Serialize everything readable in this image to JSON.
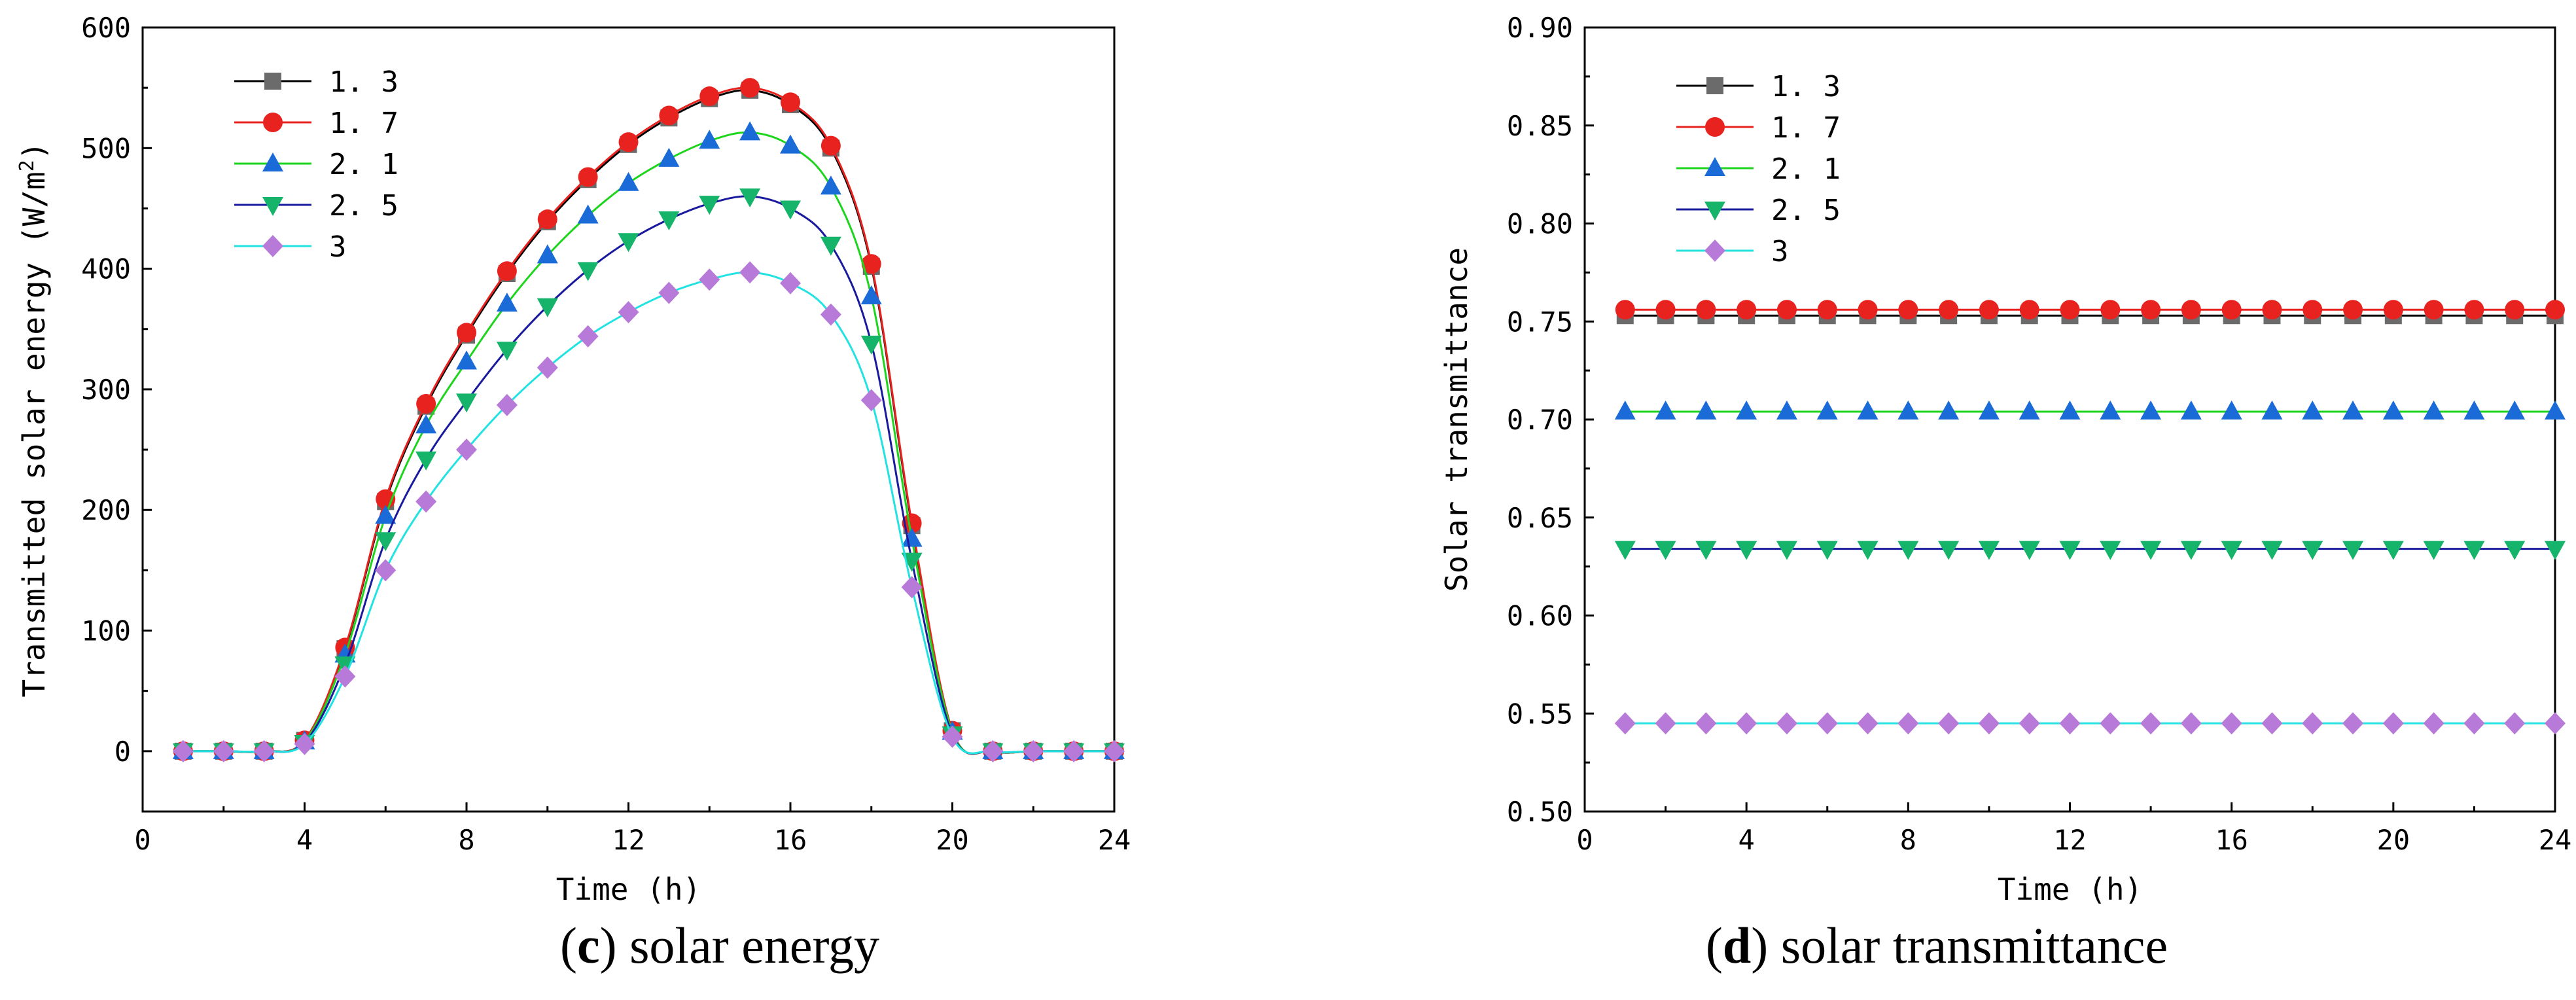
{
  "captions": [
    {
      "letter": "c",
      "open": "(",
      "close": ")",
      "text": " solar energy"
    },
    {
      "letter": "d",
      "open": "(",
      "close": ")",
      "text": " solar transmittance"
    }
  ],
  "chart_data": [
    {
      "type": "line",
      "title": "",
      "xlabel": "Time (h)",
      "ylabel_main": "Transmitted solar energy (W/m",
      "ylabel_sup": "2",
      "ylabel_close": ")",
      "xlim": [
        0,
        24
      ],
      "ylim": [
        -50,
        600
      ],
      "xticks": [
        0,
        4,
        8,
        12,
        16,
        20,
        24
      ],
      "yticks": [
        0,
        100,
        200,
        300,
        400,
        500,
        600
      ],
      "x": [
        1,
        2,
        3,
        4,
        5,
        6,
        7,
        8,
        9,
        10,
        11,
        12,
        13,
        14,
        15,
        16,
        17,
        18,
        19,
        20,
        21,
        22,
        23,
        24
      ],
      "legend_position": "top-left",
      "series": [
        {
          "name": "1.3",
          "marker": "square",
          "line_color": "#000000",
          "marker_color": "#6b6b6b",
          "values": [
            0,
            0,
            0,
            9,
            85,
            207,
            286,
            345,
            396,
            439,
            474,
            503,
            525,
            541,
            548,
            536,
            500,
            402,
            187,
            17,
            0,
            0,
            0,
            0
          ]
        },
        {
          "name": "1.7",
          "marker": "circle",
          "line_color": "#e8231f",
          "marker_color": "#e8231f",
          "values": [
            0,
            0,
            0,
            9,
            86,
            209,
            288,
            347,
            398,
            441,
            476,
            505,
            527,
            543,
            550,
            538,
            502,
            404,
            189,
            17,
            0,
            0,
            0,
            0
          ]
        },
        {
          "name": "2.1",
          "marker": "triangle-up",
          "line_color": "#1ed51e",
          "marker_color": "#1a6ad8",
          "values": [
            0,
            0,
            0,
            8,
            80,
            195,
            270,
            323,
            371,
            411,
            444,
            471,
            491,
            506,
            513,
            502,
            468,
            377,
            176,
            16,
            0,
            0,
            0,
            0
          ]
        },
        {
          "name": "2.5",
          "marker": "triangle-down",
          "line_color": "#1a1a9e",
          "marker_color": "#16b36b",
          "values": [
            0,
            0,
            0,
            7,
            72,
            175,
            242,
            290,
            333,
            369,
            399,
            423,
            441,
            454,
            460,
            450,
            420,
            338,
            158,
            14,
            0,
            0,
            0,
            0
          ]
        },
        {
          "name": "3",
          "marker": "diamond",
          "line_color": "#22e2e2",
          "marker_color": "#b87ad8",
          "values": [
            0,
            0,
            0,
            6,
            62,
            150,
            207,
            250,
            287,
            318,
            344,
            364,
            380,
            391,
            397,
            388,
            362,
            291,
            136,
            12,
            0,
            0,
            0,
            0
          ]
        }
      ]
    },
    {
      "type": "line",
      "title": "",
      "xlabel": "Time (h)",
      "ylabel": "Solar transmittance",
      "xlim": [
        0,
        24
      ],
      "ylim": [
        0.5,
        0.9
      ],
      "xticks": [
        0,
        4,
        8,
        12,
        16,
        20,
        24
      ],
      "yticks": [
        "0.50",
        "0.55",
        "0.60",
        "0.65",
        "0.70",
        "0.75",
        "0.80",
        "0.85",
        "0.90"
      ],
      "x": [
        1,
        2,
        3,
        4,
        5,
        6,
        7,
        8,
        9,
        10,
        11,
        12,
        13,
        14,
        15,
        16,
        17,
        18,
        19,
        20,
        21,
        22,
        23,
        24
      ],
      "legend_position": "top-left",
      "series": [
        {
          "name": "1.3",
          "marker": "square",
          "line_color": "#000000",
          "marker_color": "#6b6b6b",
          "constant": 0.753
        },
        {
          "name": "1.7",
          "marker": "circle",
          "line_color": "#e8231f",
          "marker_color": "#e8231f",
          "constant": 0.756
        },
        {
          "name": "2.1",
          "marker": "triangle-up",
          "line_color": "#1ed51e",
          "marker_color": "#1a6ad8",
          "constant": 0.704
        },
        {
          "name": "2.5",
          "marker": "triangle-down",
          "line_color": "#1a1a9e",
          "marker_color": "#16b36b",
          "constant": 0.634
        },
        {
          "name": "3",
          "marker": "diamond",
          "line_color": "#22e2e2",
          "marker_color": "#b87ad8",
          "constant": 0.545
        }
      ]
    }
  ]
}
